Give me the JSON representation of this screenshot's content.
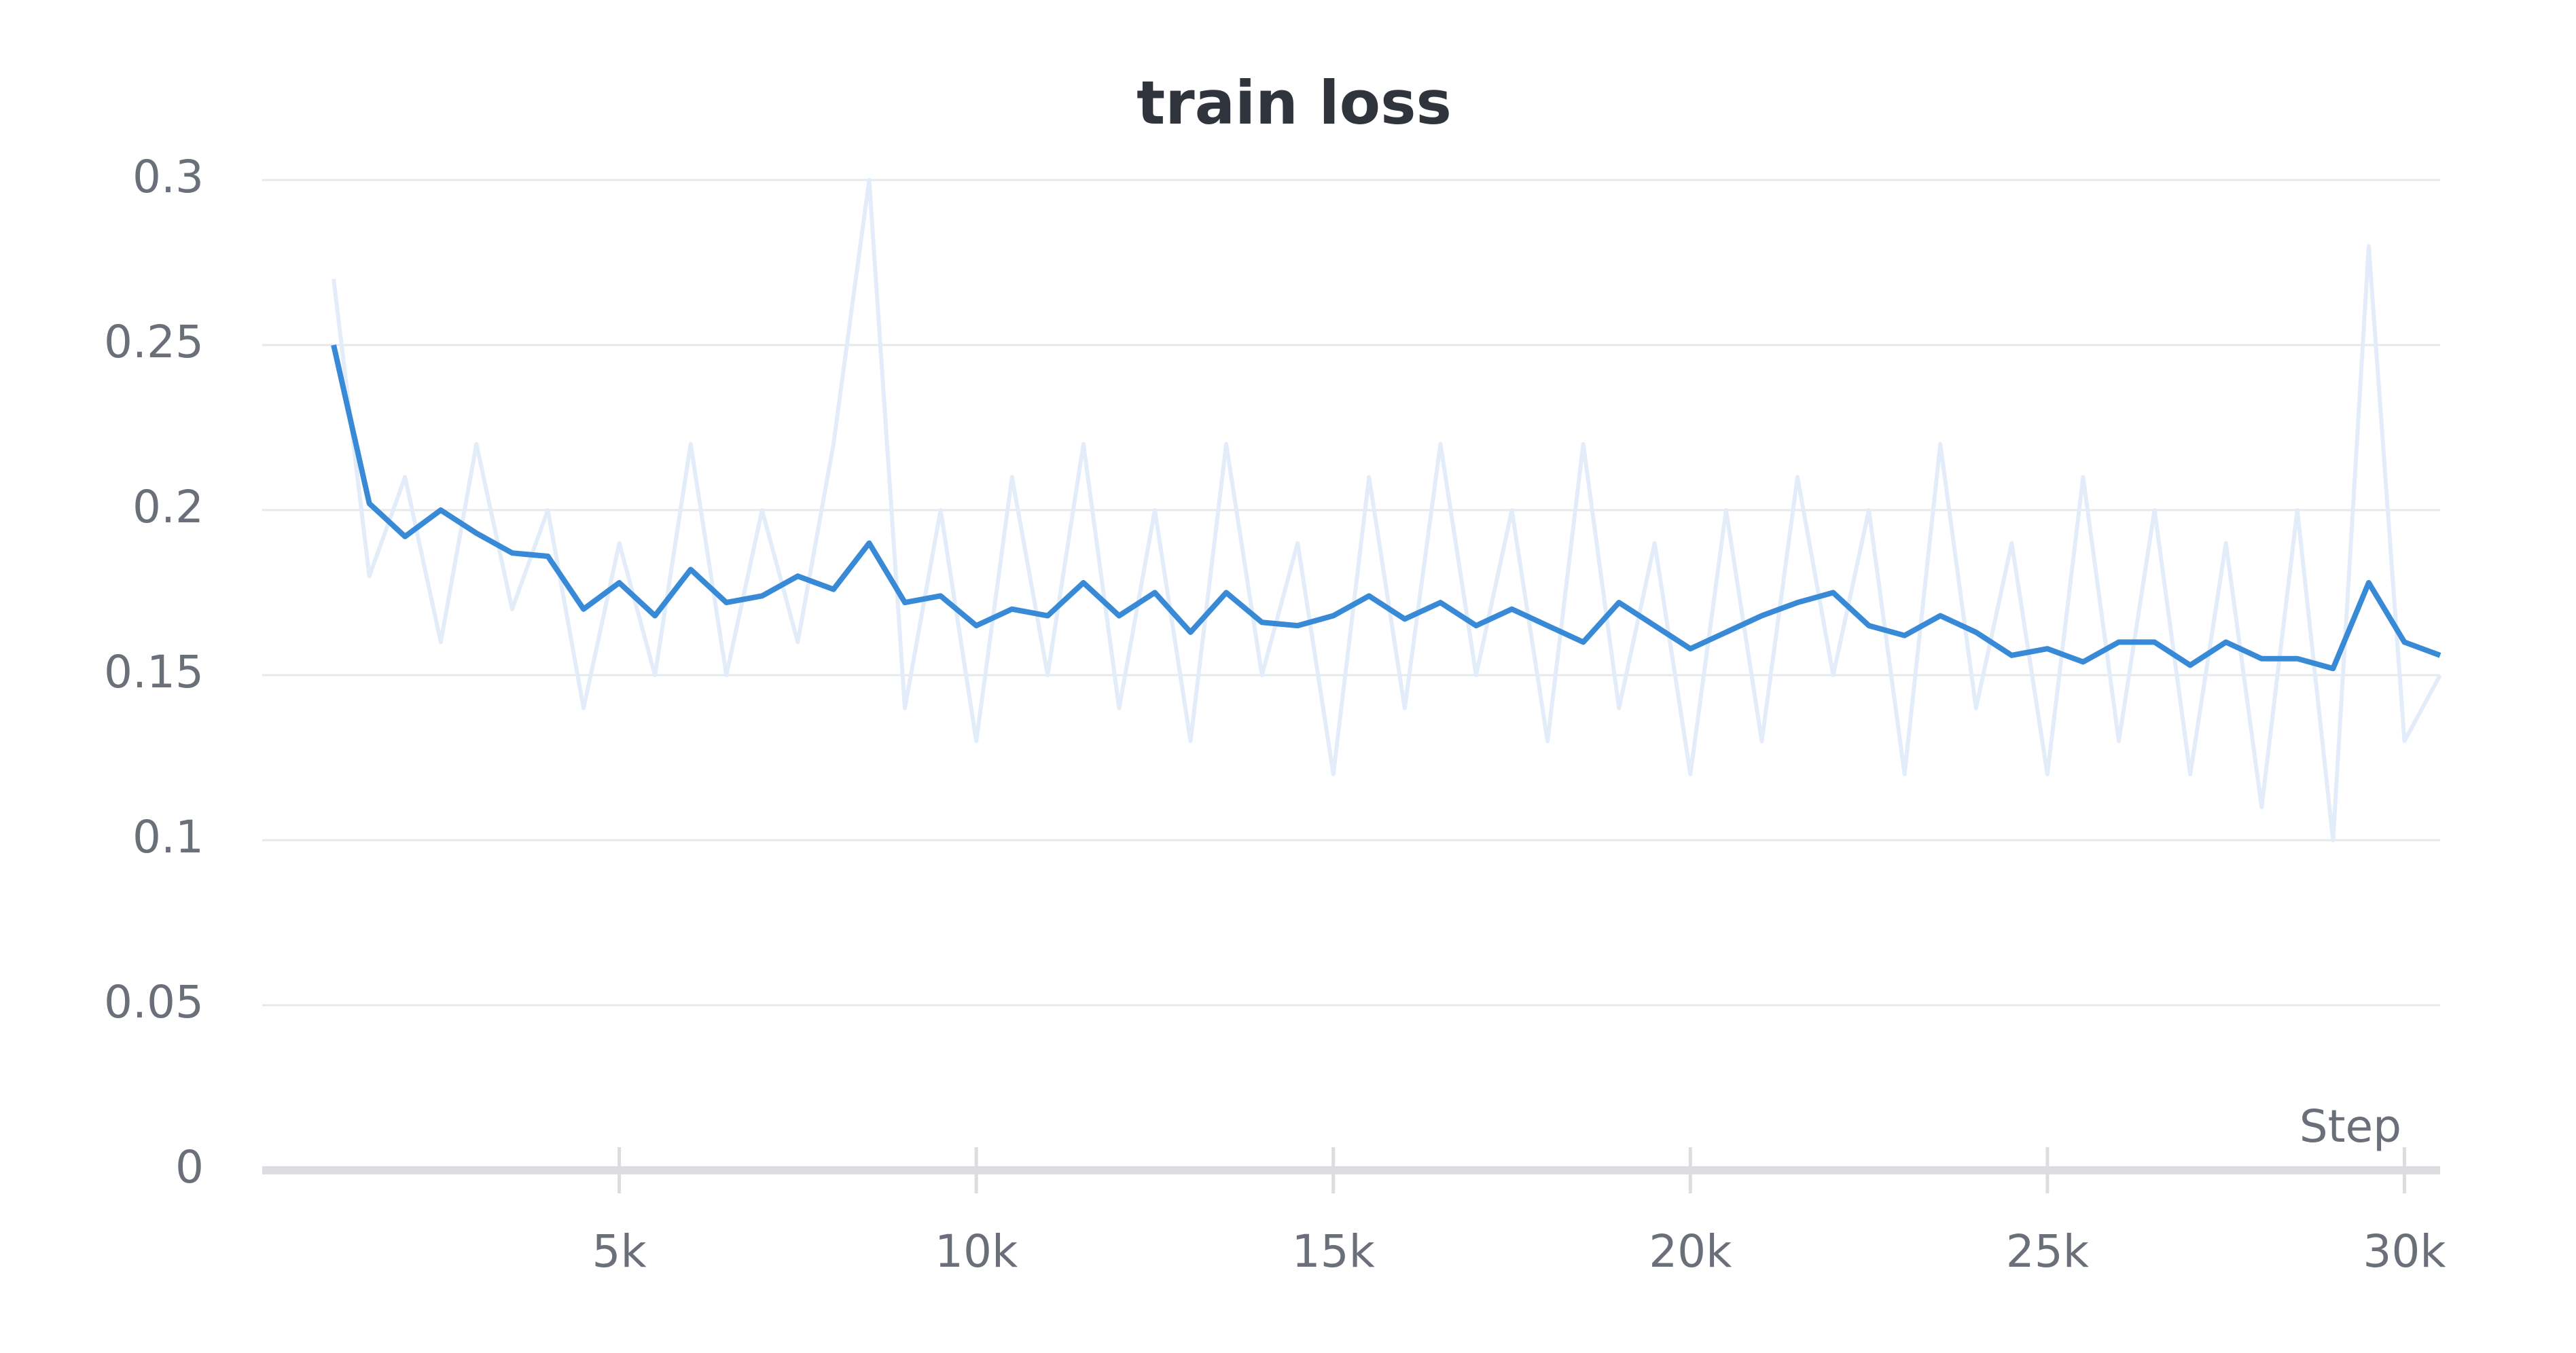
{
  "chart_data": {
    "type": "line",
    "title": "train loss",
    "x_label": "Step",
    "x": [
      1000,
      1500,
      2000,
      2500,
      3000,
      3500,
      4000,
      4500,
      5000,
      5500,
      6000,
      6500,
      7000,
      7500,
      8000,
      8500,
      9000,
      9500,
      10000,
      10500,
      11000,
      11500,
      12000,
      12500,
      13000,
      13500,
      14000,
      14500,
      15000,
      15500,
      16000,
      16500,
      17000,
      17500,
      18000,
      18500,
      19000,
      19500,
      20000,
      20500,
      21000,
      21500,
      22000,
      22500,
      23000,
      23500,
      24000,
      24500,
      25000,
      25500,
      26000,
      26500,
      27000,
      27500,
      28000,
      28500,
      29000,
      29500,
      30000,
      30500
    ],
    "series": [
      {
        "color": "#e2edf9",
        "values": [
          0.27,
          0.18,
          0.21,
          0.16,
          0.22,
          0.17,
          0.2,
          0.14,
          0.19,
          0.15,
          0.22,
          0.15,
          0.2,
          0.16,
          0.22,
          0.3,
          0.14,
          0.2,
          0.13,
          0.21,
          0.15,
          0.22,
          0.14,
          0.2,
          0.13,
          0.22,
          0.15,
          0.19,
          0.12,
          0.21,
          0.14,
          0.22,
          0.15,
          0.2,
          0.13,
          0.22,
          0.14,
          0.19,
          0.12,
          0.2,
          0.13,
          0.21,
          0.15,
          0.2,
          0.12,
          0.22,
          0.14,
          0.19,
          0.12,
          0.21,
          0.13,
          0.2,
          0.12,
          0.19,
          0.11,
          0.2,
          0.1,
          0.28,
          0.13,
          0.15
        ]
      },
      {
        "color": "#398ad6",
        "values": [
          0.25,
          0.202,
          0.192,
          0.2,
          0.193,
          0.187,
          0.186,
          0.17,
          0.178,
          0.168,
          0.182,
          0.172,
          0.174,
          0.18,
          0.176,
          0.19,
          0.172,
          0.174,
          0.165,
          0.17,
          0.168,
          0.178,
          0.168,
          0.175,
          0.163,
          0.175,
          0.166,
          0.165,
          0.168,
          0.174,
          0.167,
          0.172,
          0.165,
          0.17,
          0.165,
          0.16,
          0.172,
          0.165,
          0.158,
          0.163,
          0.168,
          0.172,
          0.175,
          0.165,
          0.162,
          0.168,
          0.163,
          0.156,
          0.158,
          0.154,
          0.16,
          0.16,
          0.153,
          0.16,
          0.155,
          0.155,
          0.152,
          0.178,
          0.16,
          0.156
        ]
      }
    ],
    "xlim": [
      0,
      30500
    ],
    "ylim": [
      0,
      0.3
    ],
    "xticks": [
      {
        "value": 5000,
        "label": "5k"
      },
      {
        "value": 10000,
        "label": "10k"
      },
      {
        "value": 15000,
        "label": "15k"
      },
      {
        "value": 20000,
        "label": "20k"
      },
      {
        "value": 25000,
        "label": "25k"
      },
      {
        "value": 30000,
        "label": "30k"
      }
    ],
    "yticks": [
      0,
      0.05,
      0.1,
      0.15,
      0.2,
      0.25,
      0.3
    ],
    "grid": true
  }
}
